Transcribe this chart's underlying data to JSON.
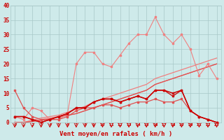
{
  "x": [
    0,
    1,
    2,
    3,
    4,
    5,
    6,
    7,
    8,
    9,
    10,
    11,
    12,
    13,
    14,
    15,
    16,
    17,
    18,
    19,
    20,
    21,
    22,
    23
  ],
  "line_light_wavy": [
    2,
    1,
    5,
    4,
    1,
    1,
    3,
    20,
    24,
    24,
    20,
    19,
    23,
    27,
    30,
    30,
    36,
    30,
    27,
    30,
    25,
    16,
    20,
    15
  ],
  "line_dark_wavy1": [
    2,
    2,
    1,
    0,
    1,
    2,
    3,
    5,
    5,
    7,
    8,
    8,
    7,
    8,
    9,
    8,
    11,
    11,
    10,
    11,
    4,
    2,
    1,
    0
  ],
  "line_dark_wavy2": [
    2,
    2,
    1,
    0,
    1,
    2,
    3,
    5,
    5,
    7,
    8,
    8,
    7,
    8,
    9,
    8,
    11,
    11,
    9,
    11,
    4,
    2,
    1,
    0
  ],
  "line_mid_wavy": [
    11,
    5,
    2,
    1,
    1,
    1,
    2,
    4,
    5,
    5,
    6,
    6,
    5,
    6,
    7,
    7,
    8,
    7,
    7,
    8,
    4,
    2,
    1,
    0
  ],
  "linear1": [
    0,
    0,
    0.5,
    1,
    1.5,
    2,
    2.5,
    3,
    4,
    5,
    6,
    7,
    8,
    9,
    10,
    11,
    13,
    14,
    15,
    16,
    17,
    18,
    19,
    20
  ],
  "linear2": [
    0,
    0,
    0.8,
    1.5,
    2,
    2.5,
    3.5,
    4.5,
    5.5,
    7,
    8,
    9,
    10,
    11,
    12,
    13,
    15,
    16,
    17,
    18,
    19,
    20,
    21,
    22
  ],
  "linear3": [
    0,
    0,
    0.3,
    0.7,
    1.2,
    1.8,
    2.4,
    3.0,
    4,
    5,
    6,
    7,
    8,
    9,
    10,
    11,
    13,
    14,
    15,
    16,
    17,
    18,
    19,
    20
  ],
  "bg_color": "#ceeaea",
  "grid_color": "#a8c8c8",
  "color_dark_red": "#cc0000",
  "color_mid_red": "#e05050",
  "color_light_red": "#f08080",
  "xlabel": "Vent moyen/en rafales ( km/h )",
  "ylim": [
    0,
    40
  ],
  "xlim": [
    -0.5,
    23.5
  ],
  "yticks": [
    0,
    5,
    10,
    15,
    20,
    25,
    30,
    35,
    40
  ],
  "xticks": [
    0,
    1,
    2,
    3,
    4,
    5,
    6,
    7,
    8,
    9,
    10,
    11,
    12,
    13,
    14,
    15,
    16,
    17,
    18,
    19,
    20,
    21,
    22,
    23
  ]
}
